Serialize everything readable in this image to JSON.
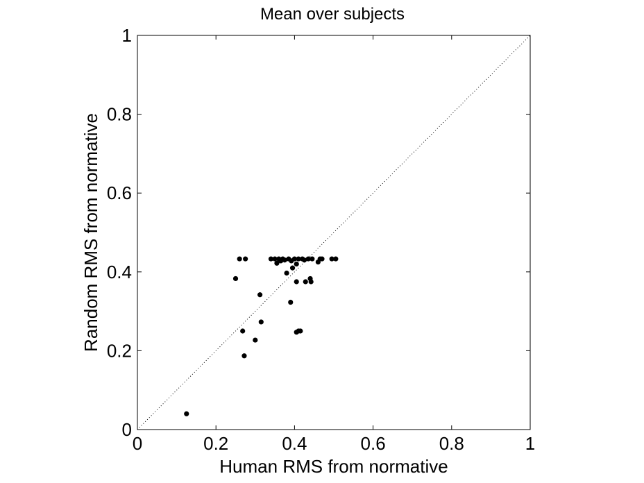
{
  "chart_data": {
    "type": "scatter",
    "title": "Mean over subjects",
    "xlabel": "Human RMS from normative",
    "ylabel": "Random RMS from normative",
    "xlim": [
      0,
      1
    ],
    "ylim": [
      0,
      1
    ],
    "xticks": [
      "0",
      "0.2",
      "0.4",
      "0.6",
      "0.8",
      "1"
    ],
    "yticks": [
      "0",
      "0.2",
      "0.4",
      "0.6",
      "0.8",
      "1"
    ],
    "xtick_values": [
      0,
      0.2,
      0.4,
      0.6,
      0.8,
      1
    ],
    "ytick_values": [
      0,
      0.2,
      0.4,
      0.6,
      0.8,
      1
    ],
    "grid": false,
    "diagonal_reference": true,
    "marker_color": "#000000",
    "points": [
      {
        "x": 0.125,
        "y": 0.04
      },
      {
        "x": 0.25,
        "y": 0.383
      },
      {
        "x": 0.26,
        "y": 0.433
      },
      {
        "x": 0.275,
        "y": 0.433
      },
      {
        "x": 0.268,
        "y": 0.25
      },
      {
        "x": 0.272,
        "y": 0.187
      },
      {
        "x": 0.3,
        "y": 0.227
      },
      {
        "x": 0.312,
        "y": 0.342
      },
      {
        "x": 0.315,
        "y": 0.273
      },
      {
        "x": 0.34,
        "y": 0.433
      },
      {
        "x": 0.35,
        "y": 0.433
      },
      {
        "x": 0.355,
        "y": 0.422
      },
      {
        "x": 0.36,
        "y": 0.433
      },
      {
        "x": 0.365,
        "y": 0.428
      },
      {
        "x": 0.37,
        "y": 0.433
      },
      {
        "x": 0.375,
        "y": 0.43
      },
      {
        "x": 0.38,
        "y": 0.397
      },
      {
        "x": 0.385,
        "y": 0.433
      },
      {
        "x": 0.39,
        "y": 0.323
      },
      {
        "x": 0.392,
        "y": 0.428
      },
      {
        "x": 0.395,
        "y": 0.41
      },
      {
        "x": 0.4,
        "y": 0.433
      },
      {
        "x": 0.405,
        "y": 0.42
      },
      {
        "x": 0.405,
        "y": 0.375
      },
      {
        "x": 0.41,
        "y": 0.433
      },
      {
        "x": 0.41,
        "y": 0.25
      },
      {
        "x": 0.415,
        "y": 0.25
      },
      {
        "x": 0.405,
        "y": 0.247
      },
      {
        "x": 0.42,
        "y": 0.433
      },
      {
        "x": 0.425,
        "y": 0.43
      },
      {
        "x": 0.428,
        "y": 0.375
      },
      {
        "x": 0.435,
        "y": 0.433
      },
      {
        "x": 0.44,
        "y": 0.383
      },
      {
        "x": 0.442,
        "y": 0.375
      },
      {
        "x": 0.445,
        "y": 0.433
      },
      {
        "x": 0.46,
        "y": 0.425
      },
      {
        "x": 0.465,
        "y": 0.433
      },
      {
        "x": 0.47,
        "y": 0.433
      },
      {
        "x": 0.495,
        "y": 0.433
      },
      {
        "x": 0.505,
        "y": 0.433
      }
    ]
  }
}
